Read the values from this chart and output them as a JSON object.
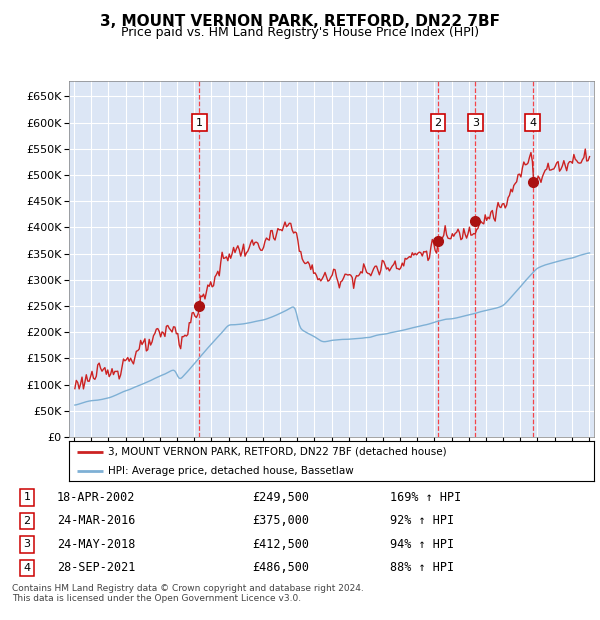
{
  "title": "3, MOUNT VERNON PARK, RETFORD, DN22 7BF",
  "subtitle": "Price paid vs. HM Land Registry's House Price Index (HPI)",
  "title_fontsize": 11,
  "subtitle_fontsize": 9,
  "background_color": "#dce6f5",
  "legend_label_red": "3, MOUNT VERNON PARK, RETFORD, DN22 7BF (detached house)",
  "legend_label_blue": "HPI: Average price, detached house, Bassetlaw",
  "footer": "Contains HM Land Registry data © Crown copyright and database right 2024.\nThis data is licensed under the Open Government Licence v3.0.",
  "transactions": [
    {
      "num": 1,
      "date_label": "18-APR-2002",
      "date_x": 2002.29,
      "price": 249500,
      "hpi_pct": "169%",
      "arrow": "↑"
    },
    {
      "num": 2,
      "date_label": "24-MAR-2016",
      "date_x": 2016.21,
      "price": 375000,
      "hpi_pct": "92%",
      "arrow": "↑"
    },
    {
      "num": 3,
      "date_label": "24-MAY-2018",
      "date_x": 2018.39,
      "price": 412500,
      "hpi_pct": "94%",
      "arrow": "↑"
    },
    {
      "num": 4,
      "date_label": "28-SEP-2021",
      "date_x": 2021.74,
      "price": 486500,
      "hpi_pct": "88%",
      "arrow": "↑"
    }
  ],
  "ylim": [
    0,
    680000
  ],
  "xlim": [
    1994.7,
    2025.3
  ],
  "yticks": [
    0,
    50000,
    100000,
    150000,
    200000,
    250000,
    300000,
    350000,
    400000,
    450000,
    500000,
    550000,
    600000,
    650000
  ],
  "xticks": [
    1995,
    1996,
    1997,
    1998,
    1999,
    2000,
    2001,
    2002,
    2003,
    2004,
    2005,
    2006,
    2007,
    2008,
    2009,
    2010,
    2011,
    2012,
    2013,
    2014,
    2015,
    2016,
    2017,
    2018,
    2019,
    2020,
    2021,
    2022,
    2023,
    2024,
    2025
  ]
}
